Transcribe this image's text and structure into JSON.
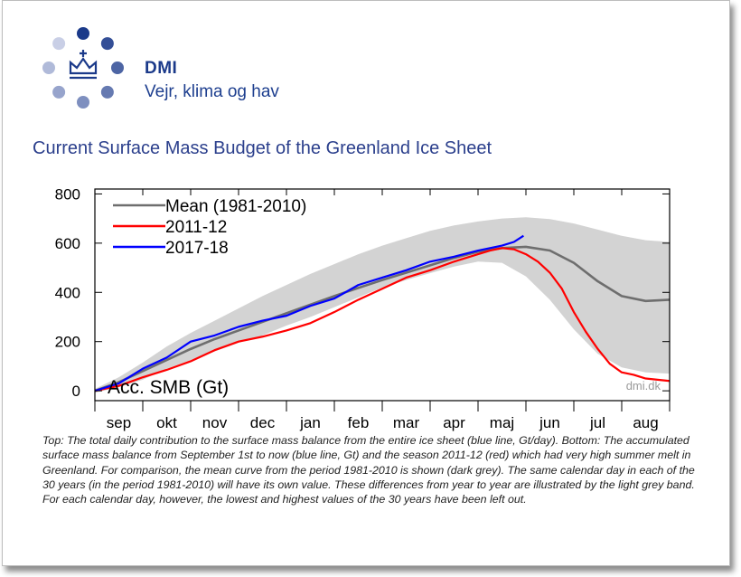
{
  "brand": {
    "name": "DMI",
    "tagline": "Vejr, klima og hav",
    "logo_icon": "crown-icon",
    "dot_color_dark": "#1b3a8a",
    "dot_color_light": "#c9cfe6"
  },
  "page_title": "Current Surface Mass Budget of the Greenland Ice Sheet",
  "caption": "Top: The total daily contribution to the surface mass balance from the entire ice sheet (blue line, Gt/day). Bottom: The accumulated surface mass balance from September 1st to now (blue line, Gt) and the season 2011-12 (red) which had very high summer melt in Greenland. For comparison, the mean curve from the period 1981-2010 is shown (dark grey). The same calendar day in each of the 30 years (in the period 1981-2010) will have its own value. These differences from year to year are illustrated by the light grey band. For each calendar day, however, the lowest and highest values of the 30 years have been left out.",
  "chart_data": {
    "type": "line",
    "title": "",
    "xlabel": "",
    "ylabel": "",
    "in_plot_label": "Acc. SMB (Gt)",
    "watermark": "dmi.dk",
    "x_unit": "months from Sep 1",
    "x_categories": [
      "sep",
      "okt",
      "nov",
      "dec",
      "jan",
      "feb",
      "mar",
      "apr",
      "maj",
      "jun",
      "jul",
      "aug"
    ],
    "xlim": [
      0,
      12
    ],
    "ylim": [
      -40,
      820
    ],
    "yticks": [
      0,
      200,
      400,
      600,
      800
    ],
    "legend_position": "top-left",
    "grid": false,
    "band": {
      "name": "",
      "color": "#d3d3d3",
      "x": [
        0,
        0.5,
        1,
        1.5,
        2,
        2.5,
        3,
        3.5,
        4,
        4.5,
        5,
        5.5,
        6,
        6.5,
        7,
        7.5,
        8,
        8.5,
        9,
        9.5,
        10,
        10.5,
        11,
        11.5,
        12
      ],
      "upper": [
        8,
        55,
        115,
        180,
        235,
        285,
        335,
        385,
        430,
        475,
        515,
        555,
        590,
        620,
        650,
        672,
        688,
        700,
        705,
        698,
        680,
        655,
        630,
        612,
        605
      ],
      "lower": [
        -8,
        15,
        45,
        90,
        125,
        160,
        195,
        225,
        265,
        300,
        340,
        380,
        420,
        450,
        478,
        505,
        525,
        520,
        465,
        370,
        250,
        150,
        95,
        75,
        70
      ]
    },
    "series": [
      {
        "name": "Mean (1981-2010)",
        "color": "#6e6e6e",
        "x": [
          0,
          0.5,
          1,
          1.5,
          2,
          2.5,
          3,
          3.5,
          4,
          4.5,
          5,
          5.5,
          6,
          6.5,
          7,
          7.5,
          8,
          8.5,
          9,
          9.5,
          10,
          10.5,
          11,
          11.5,
          12
        ],
        "values": [
          0,
          35,
          80,
          125,
          170,
          210,
          245,
          280,
          315,
          350,
          385,
          418,
          450,
          480,
          510,
          540,
          565,
          580,
          585,
          570,
          520,
          445,
          385,
          365,
          370
        ]
      },
      {
        "name": "2011-12",
        "color": "#ff0000",
        "x": [
          0,
          0.5,
          1,
          1.5,
          2,
          2.5,
          3,
          3.5,
          4,
          4.5,
          5,
          5.5,
          6,
          6.5,
          7,
          7.5,
          8,
          8.25,
          8.5,
          8.75,
          9,
          9.25,
          9.5,
          9.75,
          10,
          10.25,
          10.5,
          10.75,
          11,
          11.25,
          11.5,
          11.75,
          12
        ],
        "values": [
          0,
          20,
          55,
          85,
          120,
          165,
          200,
          220,
          245,
          275,
          320,
          370,
          415,
          460,
          490,
          525,
          555,
          570,
          580,
          575,
          555,
          525,
          480,
          415,
          320,
          240,
          170,
          110,
          75,
          65,
          50,
          45,
          40
        ]
      },
      {
        "name": "2017-18",
        "color": "#0000ff",
        "x": [
          0,
          0.5,
          1,
          1.5,
          2,
          2.5,
          3,
          3.5,
          4,
          4.5,
          5,
          5.5,
          6,
          6.5,
          7,
          7.5,
          8,
          8.25,
          8.5,
          8.75,
          8.95
        ],
        "values": [
          0,
          30,
          90,
          135,
          200,
          225,
          260,
          285,
          305,
          345,
          375,
          430,
          460,
          490,
          525,
          545,
          570,
          580,
          590,
          605,
          630
        ]
      }
    ]
  }
}
